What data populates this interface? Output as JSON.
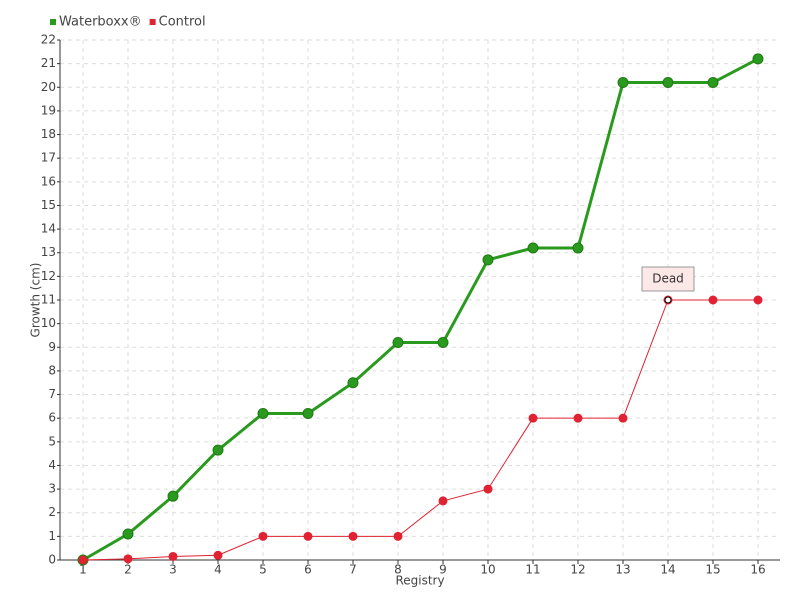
{
  "chart_data": {
    "type": "line",
    "xlabel": "Registry",
    "ylabel": "Growth (cm)",
    "categories": [
      "1",
      "2",
      "3",
      "4",
      "5",
      "6",
      "7",
      "8",
      "9",
      "10",
      "11",
      "12",
      "13",
      "14",
      "15",
      "16"
    ],
    "series": [
      {
        "name": "Waterboxx®",
        "color": "#2a9a1e",
        "values": [
          0,
          1.1,
          2.7,
          4.65,
          6.2,
          6.2,
          7.5,
          9.2,
          9.2,
          12.7,
          13.2,
          13.2,
          20.2,
          20.2,
          20.2,
          21.2
        ]
      },
      {
        "name": "Control",
        "color": "#e02232",
        "values": [
          0,
          0.05,
          0.15,
          0.2,
          1,
          1,
          1,
          1,
          2.5,
          3,
          6,
          6,
          6,
          11,
          11,
          11
        ]
      }
    ],
    "annotations": [
      {
        "text": "Dead"
      }
    ],
    "ylim": [
      0,
      22
    ],
    "yticks": [
      0,
      1,
      2,
      3,
      4,
      5,
      6,
      7,
      8,
      9,
      10,
      11,
      12,
      13,
      14,
      15,
      16,
      17,
      18,
      19,
      20,
      21,
      22
    ],
    "grid": true,
    "legend": "top-left"
  }
}
